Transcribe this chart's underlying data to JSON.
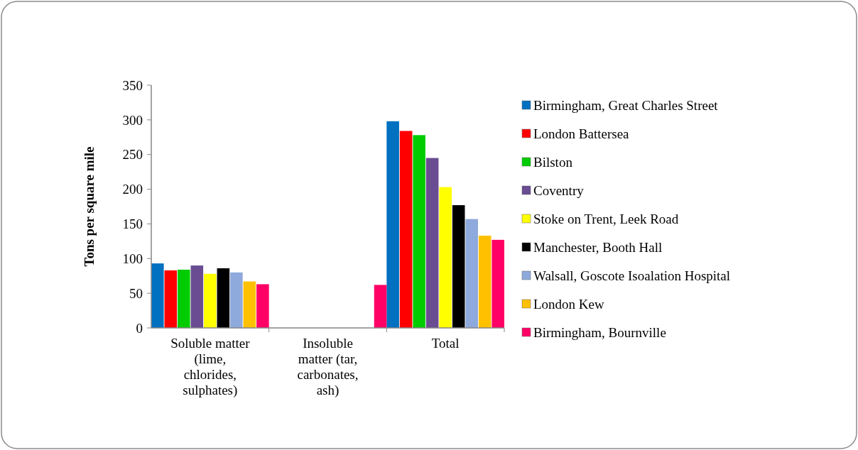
{
  "chart_data": {
    "type": "bar",
    "ylabel": "Tons per square mile",
    "categories": [
      "Soluble matter (lime, chlorides, sulphates)",
      "Insoluble matter (tar, carbonates, ash)",
      "Total"
    ],
    "series": [
      {
        "name": "Birmingham, Great Charles Street",
        "color": "#0070c0",
        "values": [
          93,
          null,
          298
        ]
      },
      {
        "name": "London Battersea",
        "color": "#ff0000",
        "values": [
          83,
          null,
          284
        ]
      },
      {
        "name": "Bilston",
        "color": "#00cc00",
        "values": [
          84,
          null,
          278
        ]
      },
      {
        "name": "Coventry",
        "color": "#6a4c93",
        "values": [
          90,
          null,
          245
        ]
      },
      {
        "name": "Stoke on Trent, Leek Road",
        "color": "#ffff00",
        "values": [
          78,
          null,
          203
        ]
      },
      {
        "name": "Manchester, Booth Hall",
        "color": "#000000",
        "values": [
          86,
          null,
          177
        ]
      },
      {
        "name": "Walsall, Goscote Isoalation Hospital",
        "color": "#8ea9db",
        "values": [
          80,
          null,
          157
        ]
      },
      {
        "name": "London Kew",
        "color": "#ffc000",
        "values": [
          67,
          null,
          133
        ]
      },
      {
        "name": "Birmingham, Bournville",
        "color": "#ff0066",
        "values": [
          63,
          62,
          127
        ]
      }
    ],
    "ylim": [
      0,
      350
    ],
    "yticks": [
      0,
      50,
      100,
      150,
      200,
      250,
      300,
      350
    ],
    "grid": false,
    "legend": "right"
  }
}
